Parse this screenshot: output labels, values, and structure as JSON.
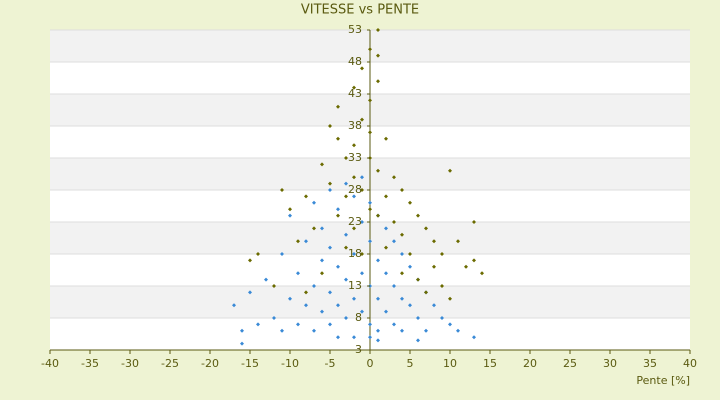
{
  "chart_data": {
    "type": "scatter",
    "title": "VITESSE vs PENTE",
    "x_label": "Pente [%]",
    "xlim": [
      -40,
      40
    ],
    "xticks": [
      -40,
      -35,
      -30,
      -25,
      -20,
      -15,
      -10,
      -5,
      0,
      5,
      10,
      15,
      20,
      25,
      30,
      35,
      40
    ],
    "ylim": [
      3,
      53
    ],
    "yticks": [
      3,
      8,
      13,
      18,
      23,
      28,
      33,
      38,
      43,
      48,
      53
    ],
    "grid": true,
    "series": [
      {
        "color": "#3a8ad6",
        "x": [
          -17,
          -16,
          -15,
          -14,
          -13,
          -12,
          -11,
          -11,
          -10,
          -10,
          -9,
          -9,
          -8,
          -8,
          -7,
          -7,
          -7,
          -6,
          -6,
          -6,
          -5,
          -5,
          -5,
          -5,
          -4,
          -4,
          -4,
          -4,
          -3,
          -3,
          -3,
          -3,
          -2,
          -2,
          -2,
          -2,
          -1,
          -1,
          -1,
          -1,
          0,
          0,
          0,
          0,
          0,
          1,
          1,
          1,
          1,
          2,
          2,
          2,
          3,
          3,
          3,
          4,
          4,
          4,
          5,
          5,
          6,
          6,
          7,
          7,
          8,
          9,
          10,
          11,
          13,
          -16,
          6,
          1
        ],
        "values": [
          10,
          6,
          12,
          7,
          14,
          8,
          18,
          6,
          11,
          24,
          15,
          7,
          20,
          10,
          26,
          13,
          6,
          22,
          17,
          9,
          28,
          19,
          12,
          7,
          25,
          16,
          10,
          5,
          29,
          21,
          14,
          8,
          27,
          18,
          11,
          5,
          30,
          23,
          15,
          9,
          26,
          20,
          13,
          7,
          5,
          24,
          17,
          11,
          6,
          22,
          15,
          9,
          20,
          13,
          7,
          18,
          11,
          6,
          16,
          10,
          14,
          8,
          12,
          6,
          10,
          8,
          7,
          6,
          5,
          4,
          4.5,
          4.5
        ]
      },
      {
        "color": "#6b6b00",
        "x": [
          -15,
          -14,
          -11,
          -10,
          -9,
          -8,
          -7,
          -6,
          -6,
          -5,
          -5,
          -4,
          -4,
          -4,
          -3,
          -3,
          -3,
          -2,
          -2,
          -2,
          -2,
          -1,
          -1,
          -1,
          -1,
          0,
          0,
          0,
          0,
          0,
          1,
          1,
          1,
          1,
          1,
          2,
          2,
          2,
          3,
          3,
          4,
          4,
          4,
          5,
          5,
          6,
          6,
          7,
          7,
          8,
          8,
          9,
          9,
          10,
          11,
          12,
          13,
          13,
          14,
          10,
          -12,
          -8
        ],
        "values": [
          17,
          18,
          28,
          25,
          20,
          27,
          22,
          32,
          15,
          29,
          38,
          24,
          36,
          41,
          33,
          27,
          19,
          44,
          30,
          22,
          35,
          39,
          28,
          18,
          47,
          42,
          33,
          25,
          50,
          37,
          45,
          31,
          24,
          53,
          49,
          36,
          27,
          19,
          30,
          23,
          28,
          21,
          15,
          26,
          18,
          24,
          14,
          22,
          12,
          20,
          16,
          18,
          13,
          31,
          20,
          16,
          23,
          17,
          15,
          11,
          13,
          12
        ]
      }
    ]
  }
}
